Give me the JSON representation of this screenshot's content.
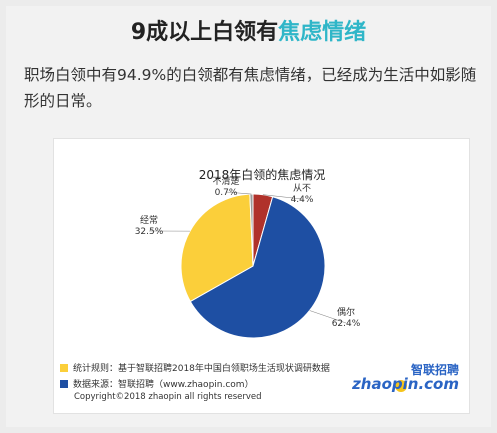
{
  "header": {
    "title_main": "9成以上白领有",
    "title_accent": "焦虑情绪",
    "accent_color": "#2fb6c8"
  },
  "intro": {
    "text": "职场白领中有94.9%的白领都有焦虑情绪，已经成为生活中如影随形的日常。"
  },
  "chart_data": {
    "type": "pie",
    "title": "2018年白领的焦虑情况",
    "slices": [
      {
        "label": "从不",
        "value": 4.4,
        "value_label": "4.4%",
        "color": "#b0322b"
      },
      {
        "label": "偶尔",
        "value": 62.4,
        "value_label": "62.4%",
        "color": "#1e4fa3"
      },
      {
        "label": "经常",
        "value": 32.5,
        "value_label": "32.5%",
        "color": "#fbcf3a"
      },
      {
        "label": "不清楚",
        "value": 0.7,
        "value_label": "0.7%",
        "color": "#9a9a9a"
      }
    ]
  },
  "notes": {
    "stats_rule": "统计规则：基于智联招聘2018年中国白领职场生活现状调研数据",
    "stats_rule_color": "#fbcf3a",
    "source": "数据来源：智联招聘（www.zhaopin.com）",
    "source_color": "#1e4fa3",
    "copyright": "Copyright©2018 zhaopin all rights reserved"
  },
  "logo": {
    "name_cn": "智联招聘",
    "name_en": "zhaopin.com"
  }
}
